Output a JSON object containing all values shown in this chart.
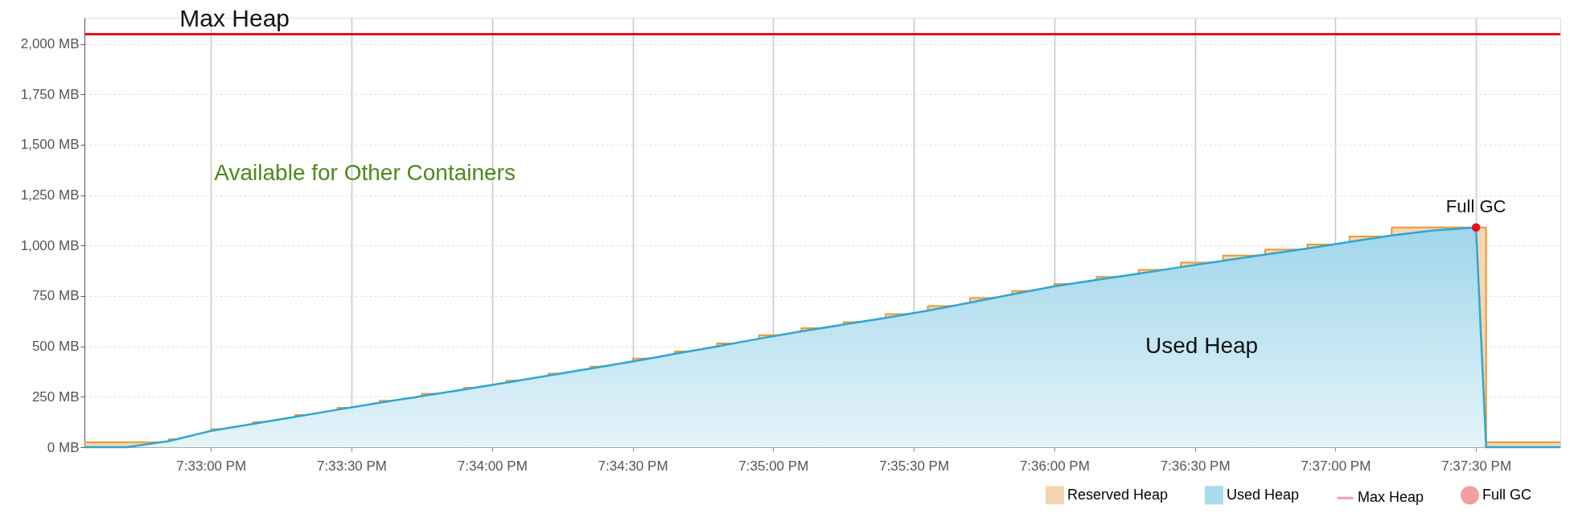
{
  "chart_data": {
    "type": "area",
    "x": [
      19.5425,
      19.545,
      19.5475,
      19.55,
      19.5525,
      19.555,
      19.5575,
      19.56,
      19.5625,
      19.565,
      19.5675,
      19.57,
      19.5725,
      19.575,
      19.5775,
      19.58,
      19.5825,
      19.585,
      19.5875,
      19.59,
      19.5925,
      19.595,
      19.5975,
      19.6,
      19.6025,
      19.605,
      19.6075,
      19.61,
      19.6125,
      19.615,
      19.6175,
      19.62,
      19.6225,
      19.625,
      19.6256,
      19.63
    ],
    "series": [
      {
        "name": "Reserved Heap",
        "type": "step",
        "color": "#e89a3c",
        "values": [
          25,
          25,
          40,
          90,
          125,
          160,
          195,
          230,
          265,
          295,
          330,
          365,
          400,
          440,
          475,
          515,
          555,
          590,
          620,
          660,
          700,
          740,
          775,
          810,
          845,
          880,
          915,
          950,
          980,
          1005,
          1045,
          1090,
          1090,
          1090,
          25,
          25
        ]
      },
      {
        "name": "Used Heap",
        "color": "#2ea6d3",
        "values": [
          0,
          0,
          30,
          81,
          116,
          151,
          186,
          220,
          253,
          286,
          320,
          355,
          390,
          425,
          463,
          500,
          538,
          574,
          608,
          641,
          677,
          717,
          758,
          798,
          830,
          861,
          893,
          924,
          955,
          985,
          1018,
          1050,
          1075,
          1090,
          0,
          0
        ]
      },
      {
        "name": "Max Heap",
        "type": "line",
        "color": "#e8101a",
        "x": [
          19.5425,
          19.63
        ],
        "values": [
          2048,
          2048
        ]
      },
      {
        "name": "Full GC",
        "type": "scatter",
        "color": "#e8101a",
        "x": [
          19.625
        ],
        "values": [
          1090
        ]
      }
    ],
    "xlim": [
      19.5425,
      19.63
    ],
    "xticks": [
      {
        "value": 19.55,
        "label": "7:33:00 PM"
      },
      {
        "value": 19.558333,
        "label": "7:33:30 PM"
      },
      {
        "value": 19.566667,
        "label": "7:34:00 PM"
      },
      {
        "value": 19.575,
        "label": "7:34:30 PM"
      },
      {
        "value": 19.583333,
        "label": "7:35:00 PM"
      },
      {
        "value": 19.591667,
        "label": "7:35:30 PM"
      },
      {
        "value": 19.6,
        "label": "7:36:00 PM"
      },
      {
        "value": 19.608333,
        "label": "7:36:30 PM"
      },
      {
        "value": 19.616667,
        "label": "7:37:00 PM"
      },
      {
        "value": 19.625,
        "label": "7:37:30 PM"
      }
    ],
    "ylim": [
      0,
      2130
    ],
    "yticks": [
      {
        "value": 0,
        "label": "0 MB"
      },
      {
        "value": 250,
        "label": "250 MB"
      },
      {
        "value": 500,
        "label": "500 MB"
      },
      {
        "value": 750,
        "label": "750 MB"
      },
      {
        "value": 1000,
        "label": "1,000 MB"
      },
      {
        "value": 1250,
        "label": "1,250 MB"
      },
      {
        "value": 1500,
        "label": "1,500 MB"
      },
      {
        "value": 1750,
        "label": "1,750 MB"
      },
      {
        "value": 2000,
        "label": "2,000 MB"
      }
    ],
    "annotations": [
      {
        "text": "Max Heap",
        "x": 19.5514,
        "y": 2048
      },
      "Available for Other Containers",
      {
        "text": "Full GC",
        "x": 19.625,
        "y": 1090
      },
      "Used Heap"
    ],
    "grid": true,
    "legend": "bottom right"
  }
}
